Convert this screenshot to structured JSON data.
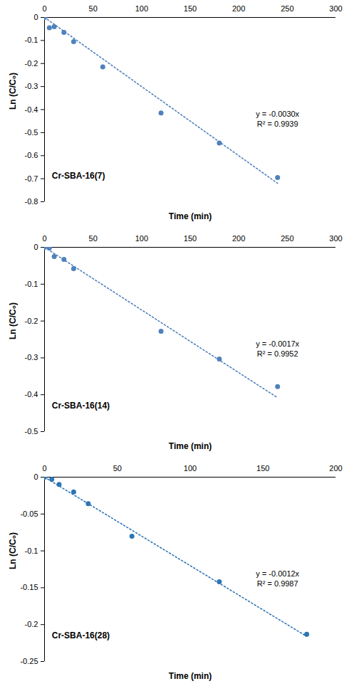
{
  "chart_data": [
    {
      "type": "scatter",
      "title": "Cr-SBA-16(7)",
      "xlabel": "Time (min)",
      "ylabel": "Ln (C/C₀)",
      "series": [
        {
          "type": "scatter",
          "marker": "circle",
          "color": "#4f81bd",
          "x": [
            0,
            5,
            10,
            20,
            30,
            60,
            120,
            180,
            240
          ],
          "values": [
            0,
            -0.045,
            -0.04,
            -0.065,
            -0.105,
            -0.215,
            -0.415,
            -0.545,
            -0.695
          ]
        },
        {
          "type": "line",
          "line_style": "dotted",
          "color": "#4f81bd",
          "x": [
            0,
            240
          ],
          "values": [
            0,
            -0.72
          ]
        }
      ],
      "annotations": [
        "y = -0.0030x",
        "R² = 0.9939"
      ],
      "xlim": [
        0,
        300
      ],
      "xticks": [
        0,
        50,
        100,
        150,
        200,
        250,
        300
      ],
      "ylim": [
        -0.8,
        0
      ],
      "yticks": [
        0,
        -0.1,
        -0.2,
        -0.3,
        -0.4,
        -0.5,
        -0.6,
        -0.7,
        -0.8
      ],
      "grid": false
    },
    {
      "type": "scatter",
      "title": "Cr-SBA-16(14)",
      "xlabel": "Time (min)",
      "ylabel": "Ln (C/C₀)",
      "series": [
        {
          "type": "scatter",
          "marker": "circle",
          "color": "#4f81bd",
          "x": [
            0,
            5,
            10,
            20,
            30,
            120,
            180,
            240
          ],
          "values": [
            0,
            -0.002,
            -0.025,
            -0.033,
            -0.058,
            -0.228,
            -0.303,
            -0.378
          ]
        },
        {
          "type": "line",
          "line_style": "dotted",
          "color": "#4f81bd",
          "x": [
            0,
            240
          ],
          "values": [
            0,
            -0.408
          ]
        }
      ],
      "annotations": [
        "y = -0.0017x",
        "R² = 0.9952"
      ],
      "xlim": [
        0,
        300
      ],
      "xticks": [
        0,
        50,
        100,
        150,
        200,
        250,
        300
      ],
      "ylim": [
        -0.5,
        0
      ],
      "yticks": [
        0,
        -0.1,
        -0.2,
        -0.3,
        -0.4,
        -0.5
      ],
      "grid": false
    },
    {
      "type": "scatter",
      "title": "Cr-SBA-16(28)",
      "xlabel": "Time (min)",
      "ylabel": "Ln (C/C₀)",
      "series": [
        {
          "type": "scatter",
          "marker": "circle",
          "color": "#2e75b6",
          "x": [
            0,
            5,
            10,
            20,
            30,
            60,
            120,
            180
          ],
          "values": [
            0,
            -0.003,
            -0.01,
            -0.02,
            -0.036,
            -0.08,
            -0.142,
            -0.213
          ]
        },
        {
          "type": "line",
          "line_style": "dotted",
          "color": "#2e75b6",
          "x": [
            0,
            180
          ],
          "values": [
            0,
            -0.216
          ]
        }
      ],
      "annotations": [
        "y = -0.0012x",
        "R² = 0.9987"
      ],
      "xlim": [
        0,
        200
      ],
      "xticks": [
        0,
        50,
        100,
        150,
        200
      ],
      "ylim": [
        -0.25,
        0
      ],
      "yticks": [
        0,
        -0.05,
        -0.1,
        -0.15,
        -0.2,
        -0.25
      ],
      "grid": false
    }
  ]
}
